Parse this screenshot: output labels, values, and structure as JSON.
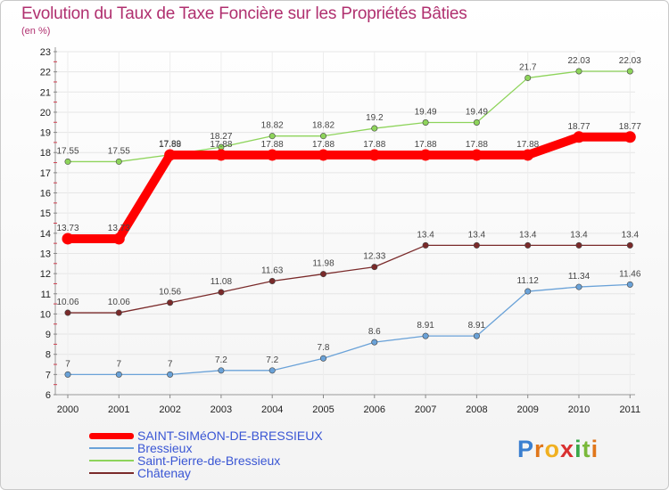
{
  "title": "Evolution du Taux de Taxe Foncière sur les Propriétés Bâties",
  "unit_label": "(en %)",
  "logo_text": "Proxiti",
  "chart_data": {
    "type": "line",
    "title": "Evolution du Taux de Taxe Foncière sur les Propriétés Bâties",
    "ylabel": "(en %)",
    "xlabel": "",
    "ylim": [
      6,
      23
    ],
    "yticks": [
      6,
      7,
      8,
      9,
      10,
      11,
      12,
      13,
      14,
      15,
      16,
      17,
      18,
      19,
      20,
      21,
      22,
      23
    ],
    "grid": true,
    "x": [
      "2000",
      "2001",
      "2002",
      "2003",
      "2004",
      "2005",
      "2006",
      "2007",
      "2008",
      "2009",
      "2010",
      "2011"
    ],
    "series": [
      {
        "name": "SAINT-SIMéON-DE-BRESSIEUX",
        "color": "#ff0000",
        "values": [
          13.73,
          13.73,
          17.88,
          17.88,
          17.88,
          17.88,
          17.88,
          17.88,
          17.88,
          17.88,
          18.77,
          18.77
        ],
        "labels": [
          "13.73",
          "13.73",
          "17.88",
          "17.88",
          "17.88",
          "17.88",
          "17.88",
          "17.88",
          "17.88",
          "17.88",
          "18.77",
          "18.77"
        ]
      },
      {
        "name": "Bressieux",
        "color": "#6aa2d8",
        "values": [
          7,
          7,
          7,
          7.2,
          7.2,
          7.8,
          8.6,
          8.91,
          8.91,
          11.12,
          11.34,
          11.46
        ],
        "labels": [
          "7",
          "7",
          "7",
          "7.2",
          "7.2",
          "7.8",
          "8.6",
          "8.91",
          "8.91",
          "11.12",
          "11.34",
          "11.46"
        ]
      },
      {
        "name": "Saint-Pierre-de-Bressieux",
        "color": "#8ed45b",
        "values": [
          17.55,
          17.55,
          17.89,
          18.27,
          18.82,
          18.82,
          19.2,
          19.49,
          19.49,
          21.7,
          22.03,
          22.03
        ],
        "labels": [
          "17.55",
          "17.55",
          "17.89",
          "18.27",
          "18.82",
          "18.82",
          "19.2",
          "19.49",
          "19.49",
          "21.7",
          "22.03",
          "22.03"
        ]
      },
      {
        "name": "Châtenay",
        "color": "#7a2a2a",
        "values": [
          10.06,
          10.06,
          10.56,
          11.08,
          11.63,
          11.98,
          12.33,
          13.4,
          13.4,
          13.4,
          13.4,
          13.4
        ],
        "labels": [
          "10.06",
          "10.06",
          "10.56",
          "11.08",
          "11.63",
          "11.98",
          "12.33",
          "13.4",
          "13.4",
          "13.4",
          "13.4",
          "13.4"
        ]
      }
    ]
  }
}
